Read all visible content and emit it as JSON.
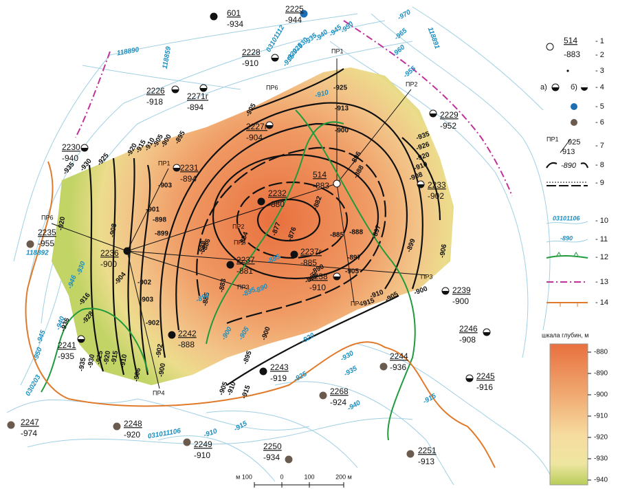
{
  "wells": [
    {
      "number": "601",
      "depth": "-934"
    },
    {
      "number": "2225",
      "depth": "-944"
    },
    {
      "number": "2228",
      "depth": "-910"
    },
    {
      "number": "2226",
      "depth": "-918"
    },
    {
      "number": "2271г",
      "depth": "-894"
    },
    {
      "number": "2229",
      "depth": "-952"
    },
    {
      "number": "2227г",
      "depth": "-904"
    },
    {
      "number": "2230",
      "depth": "-940"
    },
    {
      "number": "2231",
      "depth": "-894"
    },
    {
      "number": "514",
      "depth": "-883"
    },
    {
      "number": "2233",
      "depth": "-902"
    },
    {
      "number": "2232",
      "depth": "-880"
    },
    {
      "number": "2235",
      "depth": "-955"
    },
    {
      "number": "2236",
      "depth": "-900"
    },
    {
      "number": "2237",
      "depth": "-881"
    },
    {
      "number": "2237г",
      "depth": "-885"
    },
    {
      "number": "2238",
      "depth": "-910"
    },
    {
      "number": "2239",
      "depth": "-900"
    },
    {
      "number": "2246",
      "depth": "-908"
    },
    {
      "number": "2242",
      "depth": "-888"
    },
    {
      "number": "2241",
      "depth": "-935"
    },
    {
      "number": "2243",
      "depth": "-919"
    },
    {
      "number": "2244",
      "depth": "-936"
    },
    {
      "number": "2245",
      "depth": "-916"
    },
    {
      "number": "2268",
      "depth": "-924"
    },
    {
      "number": "2247",
      "depth": "-974"
    },
    {
      "number": "2248",
      "depth": "-920"
    },
    {
      "number": "2249",
      "depth": "-910"
    },
    {
      "number": "2250",
      "depth": "-934"
    },
    {
      "number": "2251",
      "depth": "-913"
    }
  ],
  "profiles": [
    "ПР1",
    "ПР2",
    "ПР6",
    "ПР1",
    "ПР6",
    "ПР2",
    "ПР5",
    "ПР3",
    "ПР3",
    "ПР4",
    "ПР4"
  ],
  "isoline_ids": [
    "118890",
    "118859",
    "03101112",
    "118891",
    "118892",
    "031011106",
    "030203"
  ],
  "contour_labels": [
    "-920",
    "-915",
    "-910",
    "-905",
    "-900",
    "-895",
    "-935",
    "-930",
    "-925",
    "-905",
    "-913",
    "-925",
    "-900",
    "-896",
    "-888",
    "-882",
    "-877",
    "-876",
    "-884",
    "-886",
    "-897",
    "-899",
    "-888",
    "-885",
    "-897",
    "-890",
    "-895",
    "-905",
    "-915",
    "-910",
    "-905",
    "-900",
    "-906",
    "-935",
    "-926",
    "-920",
    "-910",
    "-908",
    "-920",
    "-908",
    "-901",
    "-898",
    "-899",
    "-903",
    "-902",
    "-903",
    "-902",
    "-904",
    "-916",
    "-928",
    "-936",
    "-935",
    "-930",
    "-925",
    "-920",
    "-915",
    "-910",
    "-906",
    "-900",
    "-902",
    "-895",
    "-900",
    "-905",
    "-910",
    "-915",
    "-883",
    "-885",
    "-888"
  ],
  "depth_isoline_labels": [
    "-950",
    "-945",
    "-940",
    "-935",
    "-930",
    "-925",
    "-920",
    "-915",
    "-970",
    "-965",
    "-960",
    "-955",
    "-910",
    "-885",
    "-890",
    "-895",
    "-890",
    "-900",
    "-905",
    "-920",
    "-925",
    "-930",
    "-935",
    "-940",
    "-915",
    "-910",
    "-915",
    "-930",
    "-946",
    "-940",
    "-945",
    "-950"
  ],
  "legend": {
    "items": [
      "- 1",
      "- 2",
      "- 3",
      "- 4",
      "- 5",
      "- 6",
      "- 7",
      "- 8",
      "- 9",
      "- 10",
      "- 11",
      "- 12",
      "- 13",
      "- 14"
    ],
    "sample_well": {
      "number": "514",
      "depth": "-883"
    },
    "a": "а)",
    "b": "б)",
    "profile": {
      "name": "ПР1",
      "top": "925",
      "bottom": "913"
    },
    "contour": "-890",
    "isoline_id": "03101106",
    "isoline_value": "-890"
  },
  "depth_scale": {
    "title": "шкала глубин, м",
    "ticks": [
      "-880",
      "-890",
      "-900",
      "-910",
      "-920",
      "-930",
      "-940"
    ]
  },
  "scale_bar": {
    "labels": [
      "м 100",
      "0",
      "100",
      "200 м"
    ]
  }
}
